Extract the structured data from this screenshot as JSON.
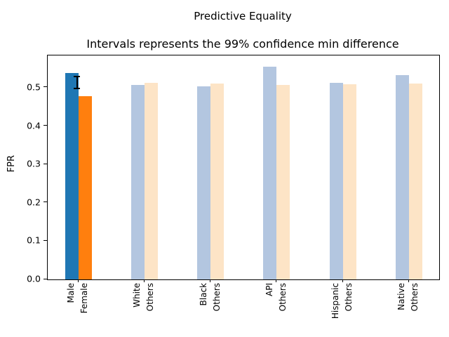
{
  "figure": {
    "title": "Predictive Equality",
    "subtitle": "Intervals represents the 99% confidence min difference",
    "ylabel": "FPR"
  },
  "chart_data": {
    "type": "bar",
    "title": "Predictive Equality",
    "subtitle": "Intervals represents the 99% confidence min difference",
    "xlabel": "",
    "ylabel": "FPR",
    "ylim": [
      0,
      0.584
    ],
    "yticks": [
      0.0,
      0.1,
      0.2,
      0.3,
      0.4,
      0.5
    ],
    "grid": false,
    "legend": null,
    "groups": [
      {
        "labels": [
          "Male",
          "Female"
        ],
        "values": [
          0.539,
          0.478
        ],
        "faded": false,
        "errorbar": {
          "center": 0.513,
          "half_range": 0.017,
          "low": 0.496,
          "high": 0.53
        }
      },
      {
        "labels": [
          "White",
          "Others"
        ],
        "values": [
          0.508,
          0.513
        ],
        "faded": true,
        "errorbar": null
      },
      {
        "labels": [
          "Black",
          "Others"
        ],
        "values": [
          0.504,
          0.51
        ],
        "faded": true,
        "errorbar": null
      },
      {
        "labels": [
          "API",
          "Others"
        ],
        "values": [
          0.554,
          0.508
        ],
        "faded": true,
        "errorbar": null
      },
      {
        "labels": [
          "Hispanic",
          "Others"
        ],
        "values": [
          0.513,
          0.509
        ],
        "faded": true,
        "errorbar": null
      },
      {
        "labels": [
          "Native",
          "Others"
        ],
        "values": [
          0.532,
          0.51
        ],
        "faded": true,
        "errorbar": null
      }
    ],
    "colors": {
      "series1": "#1f77b4",
      "series2": "#ff7f0e",
      "series1_faded": "#b3c6e0",
      "series2_faded": "#fde4c6",
      "errorbar": "#000000",
      "spine": "#000000"
    }
  }
}
